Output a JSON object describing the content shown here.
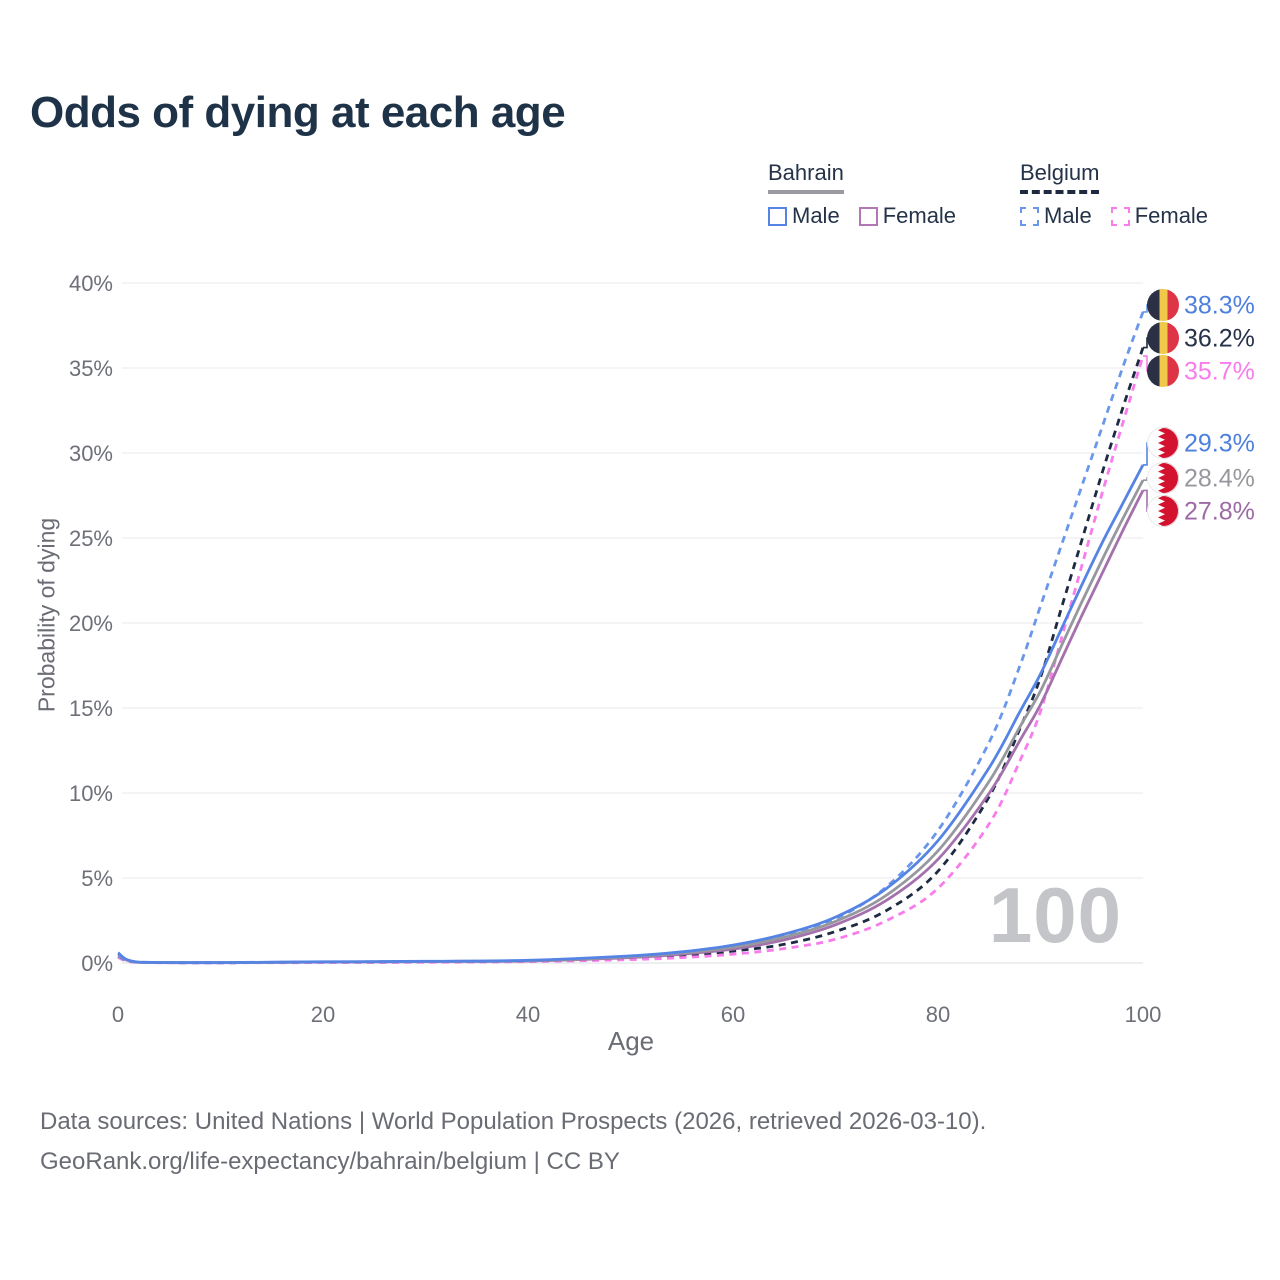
{
  "header": {
    "title": "Odds of dying at each age"
  },
  "legend": {
    "groups": [
      {
        "label": "Bahrain",
        "line_style": "solid",
        "underline_color": "#9a9aa0",
        "items": [
          {
            "label": "Male",
            "color": "#5584e4"
          },
          {
            "label": "Female",
            "color": "#b278b5"
          }
        ]
      },
      {
        "label": "Belgium",
        "line_style": "dashed",
        "underline_color": "#1d2b42",
        "items": [
          {
            "label": "Male",
            "color": "#6a97ea"
          },
          {
            "label": "Female",
            "color": "#f87ceb"
          }
        ]
      }
    ]
  },
  "watermark": "100",
  "footer": {
    "line1": "Data sources: United Nations | World Population Prospects (2026, retrieved 2026-03-10).",
    "line2": "GeoRank.org/life-expectancy/bahrain/belgium | CC BY"
  },
  "chart_data": {
    "type": "line",
    "title": "Odds of dying at each age",
    "xlabel": "Age",
    "ylabel": "Probability of dying",
    "xlim": [
      0,
      100
    ],
    "ylim": [
      0,
      40
    ],
    "x_ticks": [
      0,
      20,
      40,
      60,
      80,
      100
    ],
    "y_ticks": [
      0,
      5,
      10,
      15,
      20,
      25,
      30,
      35,
      40
    ],
    "y_tick_suffix": "%",
    "grid": "horizontal",
    "legend_position": "top-right",
    "x": [
      0,
      2,
      10,
      20,
      30,
      40,
      50,
      55,
      60,
      65,
      70,
      75,
      80,
      85,
      88,
      90,
      92,
      94,
      96,
      98,
      100
    ],
    "series": [
      {
        "name": "Belgium Overall",
        "country": "Belgium",
        "sex": "Both",
        "style": "dashed",
        "color": "#1d2b42",
        "flag": "belgium",
        "end_value": 36.2,
        "end_label": "36.2%",
        "label_color": "#27314a",
        "values": [
          0.37,
          0.035,
          0.015,
          0.04,
          0.06,
          0.11,
          0.28,
          0.44,
          0.7,
          1.1,
          1.85,
          3.1,
          5.4,
          9.8,
          13.8,
          16.8,
          20.8,
          24.8,
          28.8,
          32.6,
          36.2
        ]
      },
      {
        "name": "Belgium Female",
        "country": "Belgium",
        "sex": "Female",
        "style": "dashed",
        "color": "#f87ceb",
        "flag": "belgium",
        "end_value": 35.7,
        "end_label": "35.7%",
        "label_color": "#f87ceb",
        "values": [
          0.33,
          0.03,
          0.012,
          0.025,
          0.04,
          0.08,
          0.2,
          0.32,
          0.52,
          0.85,
          1.4,
          2.5,
          4.4,
          8.2,
          11.9,
          14.8,
          19.0,
          23.3,
          27.6,
          31.7,
          35.7
        ]
      },
      {
        "name": "Belgium Male",
        "country": "Belgium",
        "sex": "Male",
        "style": "dashed",
        "color": "#6a97ea",
        "flag": "belgium",
        "end_value": 38.3,
        "end_label": "38.3%",
        "label_color": "#4d80dd",
        "values": [
          0.4,
          0.04,
          0.02,
          0.06,
          0.08,
          0.13,
          0.35,
          0.55,
          0.95,
          1.6,
          2.6,
          4.5,
          7.8,
          13.0,
          17.5,
          21.0,
          24.5,
          28.0,
          31.5,
          35.0,
          38.3
        ]
      },
      {
        "name": "Bahrain Female",
        "country": "Bahrain",
        "sex": "Female",
        "style": "solid",
        "color": "#a471ad",
        "flag": "bahrain",
        "end_value": 27.8,
        "end_label": "27.8%",
        "label_color": "#9c6aa5",
        "values": [
          0.5,
          0.04,
          0.02,
          0.05,
          0.08,
          0.12,
          0.32,
          0.52,
          0.82,
          1.36,
          2.25,
          3.7,
          6.1,
          10.0,
          13.1,
          15.2,
          17.8,
          20.4,
          22.9,
          25.4,
          27.8
        ]
      },
      {
        "name": "Bahrain Overall",
        "country": "Bahrain",
        "sex": "Both",
        "style": "solid",
        "color": "#97989e",
        "flag": "bahrain",
        "end_value": 28.4,
        "end_label": "28.4%",
        "label_color": "#97989e",
        "values": [
          0.55,
          0.045,
          0.022,
          0.06,
          0.09,
          0.14,
          0.37,
          0.59,
          0.93,
          1.52,
          2.45,
          4.0,
          6.6,
          10.7,
          13.9,
          16.0,
          18.6,
          21.2,
          23.7,
          26.1,
          28.4
        ]
      },
      {
        "name": "Bahrain Male",
        "country": "Bahrain",
        "sex": "Male",
        "style": "solid",
        "color": "#5584e4",
        "flag": "bahrain",
        "end_value": 29.3,
        "end_label": "29.3%",
        "label_color": "#4d80dd",
        "values": [
          0.6,
          0.05,
          0.025,
          0.07,
          0.1,
          0.16,
          0.42,
          0.66,
          1.05,
          1.7,
          2.7,
          4.4,
          7.2,
          11.5,
          14.8,
          17.0,
          19.6,
          22.2,
          24.7,
          27.0,
          29.3
        ]
      }
    ],
    "flag_colors": {
      "belgium": {
        "black": "#2b3044",
        "yellow": "#f2c84b",
        "red": "#dd3545"
      },
      "bahrain": {
        "white": "#fdfdfd",
        "red": "#d2122e"
      }
    }
  }
}
